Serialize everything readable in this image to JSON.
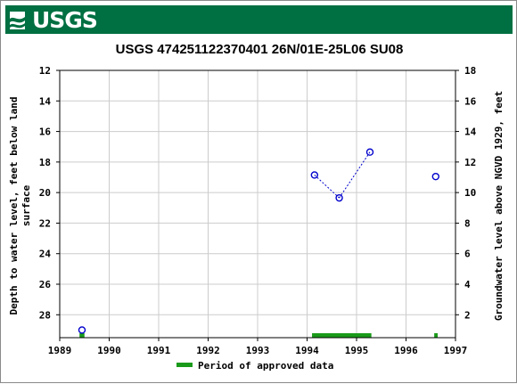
{
  "header": {
    "logo_text": "USGS",
    "banner_color": "#006f41"
  },
  "chart_data": {
    "type": "scatter",
    "title": "USGS 474251122370401 26N/01E-25L06   SU08",
    "ylabel_left": [
      "Depth to water level, feet below land",
      "surface"
    ],
    "ylabel_right": "Groundwater level above NGVD 1929, feet",
    "x_ticks": [
      "1989",
      "1990",
      "1991",
      "1992",
      "1993",
      "1994",
      "1995",
      "1996",
      "1997"
    ],
    "xlim": [
      1989,
      1997
    ],
    "y_left_ticks": [
      "12",
      "14",
      "16",
      "18",
      "20",
      "22",
      "24",
      "26",
      "28"
    ],
    "ylim_left": [
      12,
      29.5
    ],
    "y_left_inverted": true,
    "y_right_ticks": [
      "18",
      "16",
      "14",
      "12",
      "10",
      "8",
      "6",
      "4",
      "2"
    ],
    "ylim_right": [
      18,
      0.5
    ],
    "grid": true,
    "series": [
      {
        "marker": "open-circle",
        "color": "#0000cc",
        "points": [
          {
            "x": 1989.45,
            "y": 29.0
          },
          {
            "x": 1994.15,
            "y": 18.85
          },
          {
            "x": 1994.65,
            "y": 20.35
          },
          {
            "x": 1995.27,
            "y": 17.35
          },
          {
            "x": 1996.6,
            "y": 18.95
          }
        ],
        "connected_segments": [
          [
            1,
            2
          ],
          [
            2,
            3
          ]
        ]
      }
    ],
    "approved_periods": [
      {
        "start": 1989.4,
        "end": 1989.5
      },
      {
        "start": 1994.1,
        "end": 1995.3
      },
      {
        "start": 1996.57,
        "end": 1996.64
      }
    ],
    "approved_color": "#1a9a1a",
    "legend": {
      "label": "Period of approved data",
      "placement": "bottom"
    }
  }
}
